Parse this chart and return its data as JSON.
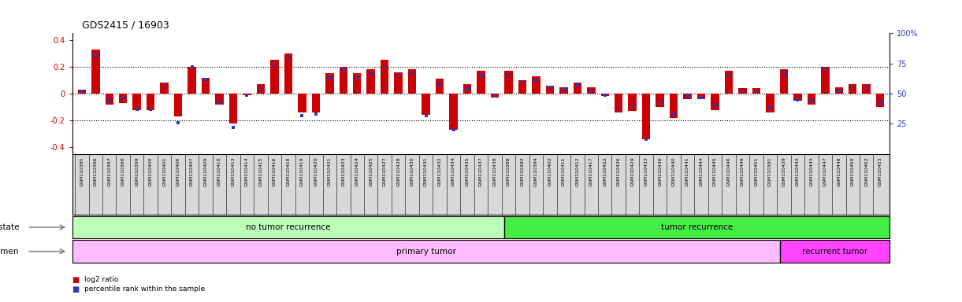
{
  "title": "GDS2415 / 16903",
  "samples": [
    "GSM110395",
    "GSM110396",
    "GSM110397",
    "GSM110398",
    "GSM110399",
    "GSM110400",
    "GSM110401",
    "GSM110406",
    "GSM110407",
    "GSM110409",
    "GSM110410",
    "GSM110413",
    "GSM110414",
    "GSM110415",
    "GSM110416",
    "GSM110418",
    "GSM110419",
    "GSM110420",
    "GSM110421",
    "GSM110423",
    "GSM110424",
    "GSM110425",
    "GSM110427",
    "GSM110428",
    "GSM110430",
    "GSM110431",
    "GSM110432",
    "GSM110434",
    "GSM110435",
    "GSM110437",
    "GSM110438",
    "GSM110388",
    "GSM110392",
    "GSM110394",
    "GSM110402",
    "GSM110411",
    "GSM110412",
    "GSM110417",
    "GSM110422",
    "GSM110426",
    "GSM110429",
    "GSM110433",
    "GSM110436",
    "GSM110440",
    "GSM110441",
    "GSM110444",
    "GSM110445",
    "GSM110446",
    "GSM110449",
    "GSM110451",
    "GSM110391",
    "GSM110439",
    "GSM110442",
    "GSM110443",
    "GSM110447",
    "GSM110448",
    "GSM110450",
    "GSM110452",
    "GSM110453"
  ],
  "log2_ratio": [
    0.03,
    0.33,
    -0.08,
    -0.07,
    -0.12,
    -0.12,
    0.08,
    -0.17,
    0.2,
    0.12,
    -0.08,
    -0.22,
    -0.01,
    0.07,
    0.25,
    0.3,
    -0.14,
    -0.14,
    0.15,
    0.2,
    0.15,
    0.18,
    0.25,
    0.16,
    0.18,
    -0.16,
    0.11,
    -0.27,
    0.07,
    0.17,
    -0.03,
    0.17,
    0.1,
    0.13,
    0.06,
    0.05,
    0.08,
    0.05,
    -0.02,
    -0.14,
    -0.13,
    -0.34,
    -0.1,
    -0.18,
    -0.04,
    -0.04,
    -0.12,
    0.17,
    0.04,
    0.04,
    -0.14,
    0.18,
    -0.05,
    -0.08,
    0.2,
    0.05,
    0.07,
    0.07,
    -0.1
  ],
  "percentile": [
    52,
    82,
    45,
    47,
    37,
    37,
    57,
    26,
    72,
    62,
    43,
    22,
    49,
    54,
    74,
    80,
    32,
    33,
    63,
    70,
    63,
    67,
    72,
    65,
    67,
    32,
    58,
    20,
    54,
    65,
    48,
    65,
    59,
    61,
    55,
    53,
    57,
    52,
    49,
    38,
    40,
    12,
    43,
    33,
    48,
    47,
    40,
    65,
    52,
    52,
    38,
    66,
    45,
    44,
    70,
    52,
    55,
    55,
    43
  ],
  "no_recurrence_count": 31,
  "recurrence_count": 28,
  "primary_tumor_count": 51,
  "recurrent_tumor_count": 8,
  "ylim_min": -0.45,
  "ylim_max": 0.45,
  "yticks": [
    -0.4,
    -0.2,
    0.0,
    0.2,
    0.4
  ],
  "ytick_labels": [
    "-0.4",
    "-0.2",
    "0",
    "0.2",
    "0.4"
  ],
  "right_yticks_pct": [
    25,
    50,
    75,
    100
  ],
  "bar_color": "#cc0000",
  "dot_color": "#3333bb",
  "no_recurrence_color": "#bbffbb",
  "tumor_recurrence_color": "#44ee44",
  "primary_tumor_color": "#ffbbff",
  "recurrent_tumor_color": "#ff44ff",
  "bg_color": "#ffffff",
  "xtick_bg_color": "#d8d8d8",
  "bar_width": 0.6
}
